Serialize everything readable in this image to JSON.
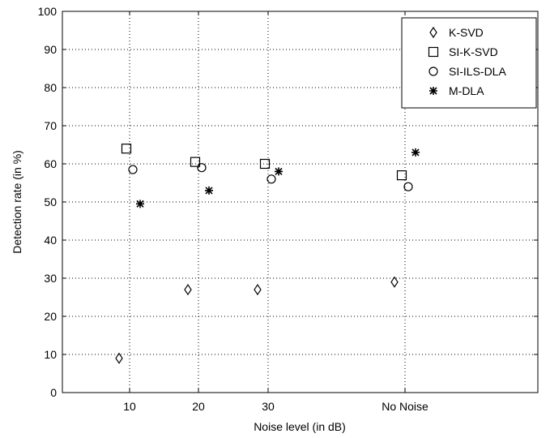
{
  "chart_data": {
    "type": "scatter",
    "xlabel": "Noise level (in dB)",
    "ylabel": "Detection rate (in %)",
    "ylim": [
      0,
      100
    ],
    "yticks": [
      0,
      10,
      20,
      30,
      40,
      50,
      60,
      70,
      80,
      90,
      100
    ],
    "categories": [
      "10",
      "20",
      "30",
      "No Noise"
    ],
    "grid": true,
    "legend_position": "top-right",
    "series": [
      {
        "name": "K-SVD",
        "marker": "diamond",
        "values": [
          9,
          27,
          27,
          29
        ]
      },
      {
        "name": "SI-K-SVD",
        "marker": "square",
        "values": [
          64,
          60.5,
          60,
          57
        ]
      },
      {
        "name": "SI-ILS-DLA",
        "marker": "circle",
        "values": [
          58.5,
          59,
          56,
          54
        ]
      },
      {
        "name": "M-DLA",
        "marker": "asterisk",
        "values": [
          49.5,
          53,
          58,
          63
        ]
      }
    ],
    "colors": {
      "marker": "#000000",
      "grid": "#000000",
      "background": "#ffffff"
    }
  }
}
